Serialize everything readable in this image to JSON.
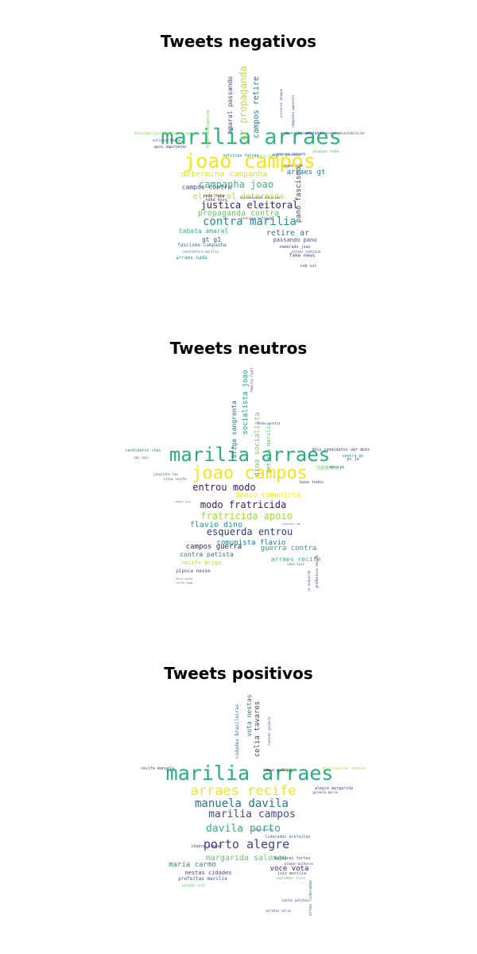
{
  "chart_data": [
    {
      "type": "wordcloud",
      "title": "Tweets negativos",
      "words": [
        {
          "text": "marilia arraes",
          "color": "#2fb47c"
        },
        {
          "text": "joao campos",
          "color": "#f3e51c"
        },
        {
          "text": "campanha joao",
          "color": "#38b977"
        },
        {
          "text": "justica eleitoral",
          "color": "#3b1c5a"
        },
        {
          "text": "contra marilia",
          "color": "#21918c"
        },
        {
          "text": "eleitoral determina",
          "color": "#b8de29"
        },
        {
          "text": "determina campanha",
          "color": "#dde318"
        },
        {
          "text": "ar propaganda",
          "color": "#bddf26"
        },
        {
          "text": "campos retire",
          "color": "#2a788e"
        },
        {
          "text": "propaganda contra",
          "color": "#5ec962"
        },
        {
          "text": "retire ar",
          "color": "#2c728e"
        },
        {
          "text": "amaral passando",
          "color": "#3e4a89"
        },
        {
          "text": "arraes gt",
          "color": "#2a788e"
        },
        {
          "text": "pano fascismo",
          "color": "#3e4a89"
        },
        {
          "text": "tabata amaral",
          "color": "#35b779"
        },
        {
          "text": "gt g1",
          "color": "#3b528b"
        },
        {
          "text": "passando pano",
          "color": "#3b528b"
        },
        {
          "text": "campos contra",
          "color": "#3e4a89"
        },
        {
          "text": "fascismo campanha",
          "color": "#2a788e"
        },
        {
          "text": "namorado joao",
          "color": "#3e4a89"
        },
        {
          "text": "fake news",
          "color": "#3b528b"
        },
        {
          "text": "arraes nada",
          "color": "#21918c"
        },
        {
          "text": "sob sol",
          "color": "#3b528b"
        },
        {
          "text": "rede fake",
          "color": "#440154"
        },
        {
          "text": "nada novo",
          "color": "#3e4a89"
        },
        {
          "text": "news disseminando",
          "color": "#3b528b"
        },
        {
          "text": "tentar desestabilizar",
          "color": "#3e4a89"
        },
        {
          "text": "ataque rede",
          "color": "#5ec962"
        },
        {
          "text": "desestabilizar candidatura marilia",
          "color": "#6ece58"
        },
        {
          "text": "noticias tentar",
          "color": "#3e4a89"
        },
        {
          "text": "apoio importantes",
          "color": "#440154"
        },
        {
          "text": "novo sob",
          "color": "#3e4a89"
        },
        {
          "text": "candidatura marilia",
          "color": "#21918c"
        },
        {
          "text": "arraes continua",
          "color": "#3b528b"
        },
        {
          "text": "noticias falsas",
          "color": "#2a788e"
        },
        {
          "text": "contra falsas",
          "color": "#5ec962"
        },
        {
          "text": "continua sofrendo",
          "color": "#3e4a89"
        },
        {
          "text": "amaral passando",
          "color": "#3b528b"
        },
        {
          "text": "pessoas atacada",
          "color": "#3e4a89"
        },
        {
          "text": "fora candidatura",
          "color": "#6ece58"
        },
        {
          "text": "universo ataque",
          "color": "#3b528b"
        },
        {
          "text": "campanha aquarela",
          "color": "#3e4a89"
        },
        {
          "text": "disseminando noticias",
          "color": "#3b528b"
        }
      ]
    },
    {
      "type": "wordcloud",
      "title": "Tweets neutros",
      "words": [
        {
          "text": "marilia arraes",
          "color": "#27ad81"
        },
        {
          "text": "joao campos",
          "color": "#f1e51d"
        },
        {
          "text": "entrou modo",
          "color": "#3b1c5a"
        },
        {
          "text": "modo fratricida",
          "color": "#3e1f5e"
        },
        {
          "text": "fratricida apoio",
          "color": "#a0da39"
        },
        {
          "text": "apoio comunista",
          "color": "#fde725"
        },
        {
          "text": "esquerda entrou",
          "color": "#2d3b7a"
        },
        {
          "text": "flavio dino",
          "color": "#21918c"
        },
        {
          "text": "comunista flavio",
          "color": "#2a788e"
        },
        {
          "text": "campos guerra",
          "color": "#3b1c5a"
        },
        {
          "text": "guerra contra",
          "color": "#21a685"
        },
        {
          "text": "contra petista",
          "color": "#2a788e"
        },
        {
          "text": "arraes recife",
          "color": "#2fb47c"
        },
        {
          "text": "recife briga",
          "color": "#b8de29"
        },
        {
          "text": "pipoca nesse",
          "color": "#3e4a89"
        },
        {
          "text": "briga sangrenta",
          "color": "#31688e"
        },
        {
          "text": "socialista joao",
          "color": "#1fa088"
        },
        {
          "text": "dino socialista",
          "color": "#7ad151"
        },
        {
          "text": "petista marilia",
          "color": "#4ac16d"
        },
        {
          "text": "candidatos chac",
          "color": "#21918c"
        },
        {
          "text": "dois candidatos",
          "color": "#3e4a89"
        },
        {
          "text": "ver dois",
          "color": "#3b1c5a"
        },
        {
          "text": "base todos",
          "color": "#3e4a89"
        },
        {
          "text": "contra pt",
          "color": "#2a788e"
        },
        {
          "text": "pt ja",
          "color": "#3b528b"
        },
        {
          "text": "fight desejo",
          "color": "#5ec962"
        },
        {
          "text": "todos contra",
          "color": "#3e4a89"
        },
        {
          "text": "familia fight",
          "color": "#3b528b"
        },
        {
          "text": "silva recife",
          "color": "#3e4a89"
        },
        {
          "text": "joaozinho tem",
          "color": "#2a788e"
        },
        {
          "text": "ja esquerda",
          "color": "#3b528b"
        },
        {
          "text": "prefeitura recife",
          "color": "#440154"
        },
        {
          "text": "contra pt",
          "color": "#3e4a89"
        },
        {
          "text": "vovo luis",
          "color": "#3b528b"
        },
        {
          "text": "recife casal",
          "color": "#3e4a89"
        },
        {
          "text": "deixa ventar",
          "color": "#3b528b"
        },
        {
          "text": "campos luis",
          "color": "#3e4a89"
        },
        {
          "text": "prefeito recife",
          "color": "#6ece58"
        },
        {
          "text": "vai sair",
          "color": "#3e4a89"
        },
        {
          "text": "joaozinho tem",
          "color": "#3b528b"
        }
      ]
    },
    {
      "type": "wordcloud",
      "title": "Tweets positivos",
      "words": [
        {
          "text": "marilia arraes",
          "color": "#27ad81"
        },
        {
          "text": "arraes recife",
          "color": "#f1e51d"
        },
        {
          "text": "manuela davila",
          "color": "#2c728e"
        },
        {
          "text": "marilia campos",
          "color": "#3e4a89"
        },
        {
          "text": "davila porto",
          "color": "#2fb47c"
        },
        {
          "text": "porto alegre",
          "color": "#433e85"
        },
        {
          "text": "margarida salomao",
          "color": "#5ec962"
        },
        {
          "text": "maria carmo",
          "color": "#21918c"
        },
        {
          "text": "voce vota",
          "color": "#3b1c5a"
        },
        {
          "text": "nestas cidades",
          "color": "#3e4a89"
        },
        {
          "text": "prefeitas marilia",
          "color": "#3b528b"
        },
        {
          "text": "celia tavares",
          "color": "#433e85"
        },
        {
          "text": "vota nestas",
          "color": "#2a788e"
        },
        {
          "text": "cidades brasileiras",
          "color": "#2a788e"
        },
        {
          "text": "recife manuela",
          "color": "#3e4a89"
        },
        {
          "text": "brasileiras chance",
          "color": "#b8de29"
        },
        {
          "text": "alegre margarida",
          "color": "#3e4a89"
        },
        {
          "text": "salomao juiz",
          "color": "#5ec962"
        },
        {
          "text": "juiz marilia",
          "color": "#3e4a89"
        },
        {
          "text": "mulheres fortes",
          "color": "#3e4a89"
        },
        {
          "text": "fortes lideradas",
          "color": "#2a788e"
        },
        {
          "text": "chance eleger",
          "color": "#3e4a89"
        },
        {
          "text": "lideradas prefeitas",
          "color": "#2a788e"
        },
        {
          "text": "campos contagem",
          "color": "#440154"
        },
        {
          "text": "carmo santos",
          "color": "#3b528b"
        },
        {
          "text": "salomao juiz",
          "color": "#5ec962"
        },
        {
          "text": "eleger mulheres",
          "color": "#3e4a89"
        },
        {
          "text": "tavares goiania",
          "color": "#3b528b"
        },
        {
          "text": "santos pelotas",
          "color": "#3e4a89"
        },
        {
          "text": "pelotas celia",
          "color": "#3b528b"
        },
        {
          "text": "goiania maria",
          "color": "#3e4a89"
        },
        {
          "text": "contagem",
          "color": "#6ece58"
        }
      ]
    }
  ]
}
